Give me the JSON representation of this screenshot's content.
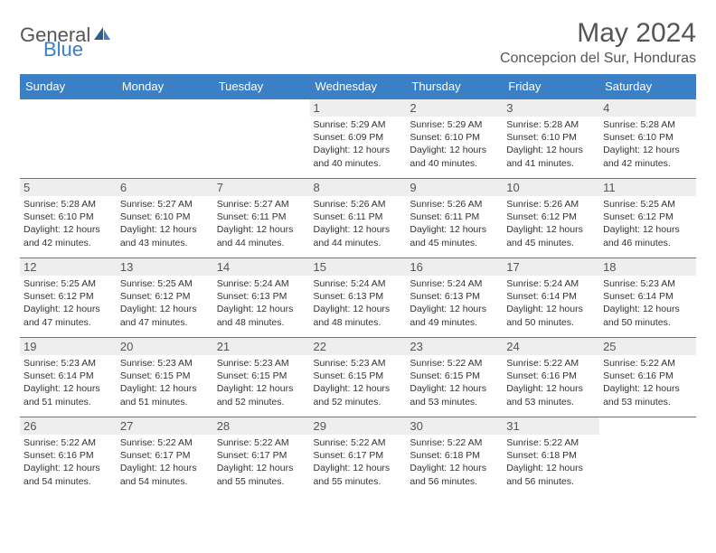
{
  "logo": {
    "text_gray": "General",
    "text_blue": "Blue"
  },
  "header": {
    "month_title": "May 2024",
    "location": "Concepcion del Sur, Honduras"
  },
  "colors": {
    "header_bg": "#3b7fc4",
    "header_text": "#ffffff",
    "row_border": "#3b7fc4",
    "daynum_bg": "#eeeeee",
    "text": "#333333",
    "muted": "#555555"
  },
  "weekday_labels": [
    "Sunday",
    "Monday",
    "Tuesday",
    "Wednesday",
    "Thursday",
    "Friday",
    "Saturday"
  ],
  "weeks": [
    [
      null,
      null,
      null,
      {
        "num": "1",
        "sunrise": "Sunrise: 5:29 AM",
        "sunset": "Sunset: 6:09 PM",
        "daylight": "Daylight: 12 hours and 40 minutes."
      },
      {
        "num": "2",
        "sunrise": "Sunrise: 5:29 AM",
        "sunset": "Sunset: 6:10 PM",
        "daylight": "Daylight: 12 hours and 40 minutes."
      },
      {
        "num": "3",
        "sunrise": "Sunrise: 5:28 AM",
        "sunset": "Sunset: 6:10 PM",
        "daylight": "Daylight: 12 hours and 41 minutes."
      },
      {
        "num": "4",
        "sunrise": "Sunrise: 5:28 AM",
        "sunset": "Sunset: 6:10 PM",
        "daylight": "Daylight: 12 hours and 42 minutes."
      }
    ],
    [
      {
        "num": "5",
        "sunrise": "Sunrise: 5:28 AM",
        "sunset": "Sunset: 6:10 PM",
        "daylight": "Daylight: 12 hours and 42 minutes."
      },
      {
        "num": "6",
        "sunrise": "Sunrise: 5:27 AM",
        "sunset": "Sunset: 6:10 PM",
        "daylight": "Daylight: 12 hours and 43 minutes."
      },
      {
        "num": "7",
        "sunrise": "Sunrise: 5:27 AM",
        "sunset": "Sunset: 6:11 PM",
        "daylight": "Daylight: 12 hours and 44 minutes."
      },
      {
        "num": "8",
        "sunrise": "Sunrise: 5:26 AM",
        "sunset": "Sunset: 6:11 PM",
        "daylight": "Daylight: 12 hours and 44 minutes."
      },
      {
        "num": "9",
        "sunrise": "Sunrise: 5:26 AM",
        "sunset": "Sunset: 6:11 PM",
        "daylight": "Daylight: 12 hours and 45 minutes."
      },
      {
        "num": "10",
        "sunrise": "Sunrise: 5:26 AM",
        "sunset": "Sunset: 6:12 PM",
        "daylight": "Daylight: 12 hours and 45 minutes."
      },
      {
        "num": "11",
        "sunrise": "Sunrise: 5:25 AM",
        "sunset": "Sunset: 6:12 PM",
        "daylight": "Daylight: 12 hours and 46 minutes."
      }
    ],
    [
      {
        "num": "12",
        "sunrise": "Sunrise: 5:25 AM",
        "sunset": "Sunset: 6:12 PM",
        "daylight": "Daylight: 12 hours and 47 minutes."
      },
      {
        "num": "13",
        "sunrise": "Sunrise: 5:25 AM",
        "sunset": "Sunset: 6:12 PM",
        "daylight": "Daylight: 12 hours and 47 minutes."
      },
      {
        "num": "14",
        "sunrise": "Sunrise: 5:24 AM",
        "sunset": "Sunset: 6:13 PM",
        "daylight": "Daylight: 12 hours and 48 minutes."
      },
      {
        "num": "15",
        "sunrise": "Sunrise: 5:24 AM",
        "sunset": "Sunset: 6:13 PM",
        "daylight": "Daylight: 12 hours and 48 minutes."
      },
      {
        "num": "16",
        "sunrise": "Sunrise: 5:24 AM",
        "sunset": "Sunset: 6:13 PM",
        "daylight": "Daylight: 12 hours and 49 minutes."
      },
      {
        "num": "17",
        "sunrise": "Sunrise: 5:24 AM",
        "sunset": "Sunset: 6:14 PM",
        "daylight": "Daylight: 12 hours and 50 minutes."
      },
      {
        "num": "18",
        "sunrise": "Sunrise: 5:23 AM",
        "sunset": "Sunset: 6:14 PM",
        "daylight": "Daylight: 12 hours and 50 minutes."
      }
    ],
    [
      {
        "num": "19",
        "sunrise": "Sunrise: 5:23 AM",
        "sunset": "Sunset: 6:14 PM",
        "daylight": "Daylight: 12 hours and 51 minutes."
      },
      {
        "num": "20",
        "sunrise": "Sunrise: 5:23 AM",
        "sunset": "Sunset: 6:15 PM",
        "daylight": "Daylight: 12 hours and 51 minutes."
      },
      {
        "num": "21",
        "sunrise": "Sunrise: 5:23 AM",
        "sunset": "Sunset: 6:15 PM",
        "daylight": "Daylight: 12 hours and 52 minutes."
      },
      {
        "num": "22",
        "sunrise": "Sunrise: 5:23 AM",
        "sunset": "Sunset: 6:15 PM",
        "daylight": "Daylight: 12 hours and 52 minutes."
      },
      {
        "num": "23",
        "sunrise": "Sunrise: 5:22 AM",
        "sunset": "Sunset: 6:15 PM",
        "daylight": "Daylight: 12 hours and 53 minutes."
      },
      {
        "num": "24",
        "sunrise": "Sunrise: 5:22 AM",
        "sunset": "Sunset: 6:16 PM",
        "daylight": "Daylight: 12 hours and 53 minutes."
      },
      {
        "num": "25",
        "sunrise": "Sunrise: 5:22 AM",
        "sunset": "Sunset: 6:16 PM",
        "daylight": "Daylight: 12 hours and 53 minutes."
      }
    ],
    [
      {
        "num": "26",
        "sunrise": "Sunrise: 5:22 AM",
        "sunset": "Sunset: 6:16 PM",
        "daylight": "Daylight: 12 hours and 54 minutes."
      },
      {
        "num": "27",
        "sunrise": "Sunrise: 5:22 AM",
        "sunset": "Sunset: 6:17 PM",
        "daylight": "Daylight: 12 hours and 54 minutes."
      },
      {
        "num": "28",
        "sunrise": "Sunrise: 5:22 AM",
        "sunset": "Sunset: 6:17 PM",
        "daylight": "Daylight: 12 hours and 55 minutes."
      },
      {
        "num": "29",
        "sunrise": "Sunrise: 5:22 AM",
        "sunset": "Sunset: 6:17 PM",
        "daylight": "Daylight: 12 hours and 55 minutes."
      },
      {
        "num": "30",
        "sunrise": "Sunrise: 5:22 AM",
        "sunset": "Sunset: 6:18 PM",
        "daylight": "Daylight: 12 hours and 56 minutes."
      },
      {
        "num": "31",
        "sunrise": "Sunrise: 5:22 AM",
        "sunset": "Sunset: 6:18 PM",
        "daylight": "Daylight: 12 hours and 56 minutes."
      },
      null
    ]
  ]
}
